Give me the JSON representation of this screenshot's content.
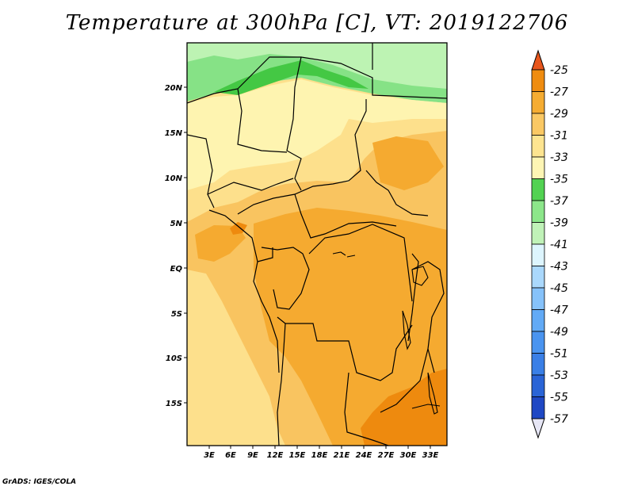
{
  "title": "Temperature at 300hPa [C], VT: 2019122706",
  "credit": "GrADS: IGES/COLA",
  "lat_ticks": [
    "20N",
    "15N",
    "10N",
    "5N",
    "EQ",
    "5S",
    "10S",
    "15S"
  ],
  "lon_ticks": [
    "3E",
    "6E",
    "9E",
    "12E",
    "15E",
    "18E",
    "21E",
    "24E",
    "27E",
    "30E",
    "33E"
  ],
  "colorbar": {
    "labels": [
      "-25",
      "-27",
      "-29",
      "-31",
      "-33",
      "-35",
      "-37",
      "-39",
      "-41",
      "-43",
      "-45",
      "-47",
      "-49",
      "-51",
      "-53",
      "-55",
      "-57"
    ],
    "colors": [
      "#1e1e6e",
      "#1f48c4",
      "#2a64d6",
      "#3a7fe6",
      "#4a94f0",
      "#62aaf6",
      "#86c2fa",
      "#aad8fc",
      "#ddf5fe",
      "#c0f2b8",
      "#8ce68a",
      "#52d252",
      "#fdf5b4",
      "#fde490",
      "#fac864",
      "#f5ac32",
      "#ef8c10",
      "#e8561c"
    ],
    "colors_order": "bottom-to-top"
  },
  "legend_colors": {
    "band_-27_-25": "#ee8a0e",
    "band_-29_-27": "#f5aa30",
    "band_-31_-29": "#f9c460",
    "band_-33_-31": "#fde08c",
    "band_-35_-33": "#fef4b0",
    "band_-37_-35": "#44c844",
    "band_-39_-37": "#86e286",
    "band_-41_-39": "#bdf3b3",
    "band_-43_-41": "#ddf5fe"
  }
}
